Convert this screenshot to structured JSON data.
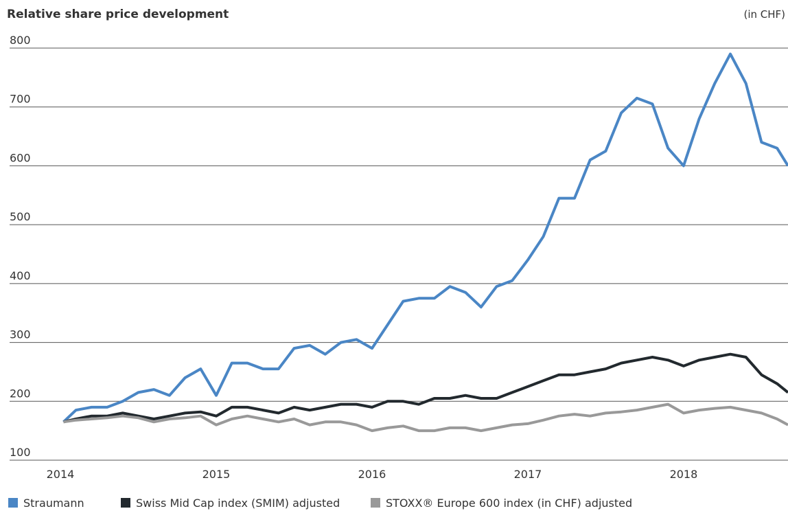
{
  "chart_data": {
    "type": "line",
    "title": "Relative share price development",
    "unit_label": "(in CHF)",
    "x": [
      2014.02,
      2014.1,
      2014.2,
      2014.3,
      2014.4,
      2014.5,
      2014.6,
      2014.7,
      2014.8,
      2014.9,
      2015.0,
      2015.1,
      2015.2,
      2015.3,
      2015.4,
      2015.5,
      2015.6,
      2015.7,
      2015.8,
      2015.9,
      2016.0,
      2016.1,
      2016.2,
      2016.3,
      2016.4,
      2016.5,
      2016.6,
      2016.7,
      2016.8,
      2016.9,
      2017.0,
      2017.1,
      2017.2,
      2017.3,
      2017.4,
      2017.5,
      2017.6,
      2017.7,
      2017.8,
      2017.9,
      2018.0,
      2018.1,
      2018.2,
      2018.3,
      2018.4,
      2018.5,
      2018.6,
      2018.67
    ],
    "series": [
      {
        "name": "Straumann",
        "color": "#4a86c5",
        "values": [
          165,
          185,
          190,
          190,
          200,
          215,
          220,
          210,
          240,
          255,
          210,
          265,
          265,
          255,
          255,
          290,
          295,
          280,
          300,
          305,
          290,
          330,
          370,
          375,
          375,
          395,
          385,
          360,
          395,
          405,
          440,
          480,
          545,
          545,
          610,
          625,
          690,
          715,
          705,
          630,
          600,
          680,
          740,
          790,
          740,
          640,
          630,
          600
        ]
      },
      {
        "name": "Swiss Mid Cap index (SMIM) adjusted",
        "color": "#22292e",
        "values": [
          165,
          170,
          175,
          175,
          180,
          175,
          170,
          175,
          180,
          182,
          175,
          190,
          190,
          185,
          180,
          190,
          185,
          190,
          195,
          195,
          190,
          200,
          200,
          195,
          205,
          205,
          210,
          205,
          205,
          215,
          225,
          235,
          245,
          245,
          250,
          255,
          265,
          270,
          275,
          270,
          260,
          270,
          275,
          280,
          275,
          245,
          230,
          215
        ]
      },
      {
        "name": "STOXX® Europe 600 index (in CHF) adjusted",
        "color": "#999999",
        "values": [
          165,
          168,
          170,
          172,
          175,
          172,
          165,
          170,
          172,
          175,
          160,
          170,
          175,
          170,
          165,
          170,
          160,
          165,
          165,
          160,
          150,
          155,
          158,
          150,
          150,
          155,
          155,
          150,
          155,
          160,
          162,
          168,
          175,
          178,
          175,
          180,
          182,
          185,
          190,
          195,
          180,
          185,
          188,
          190,
          185,
          180,
          170,
          160
        ]
      }
    ],
    "xlim": [
      2013.674,
      2018.67
    ],
    "xticks": [
      2014,
      2015,
      2016,
      2017,
      2018
    ],
    "ylim": [
      100,
      800
    ],
    "yticks": [
      100,
      200,
      300,
      400,
      500,
      600,
      700,
      800
    ],
    "grid": true
  }
}
